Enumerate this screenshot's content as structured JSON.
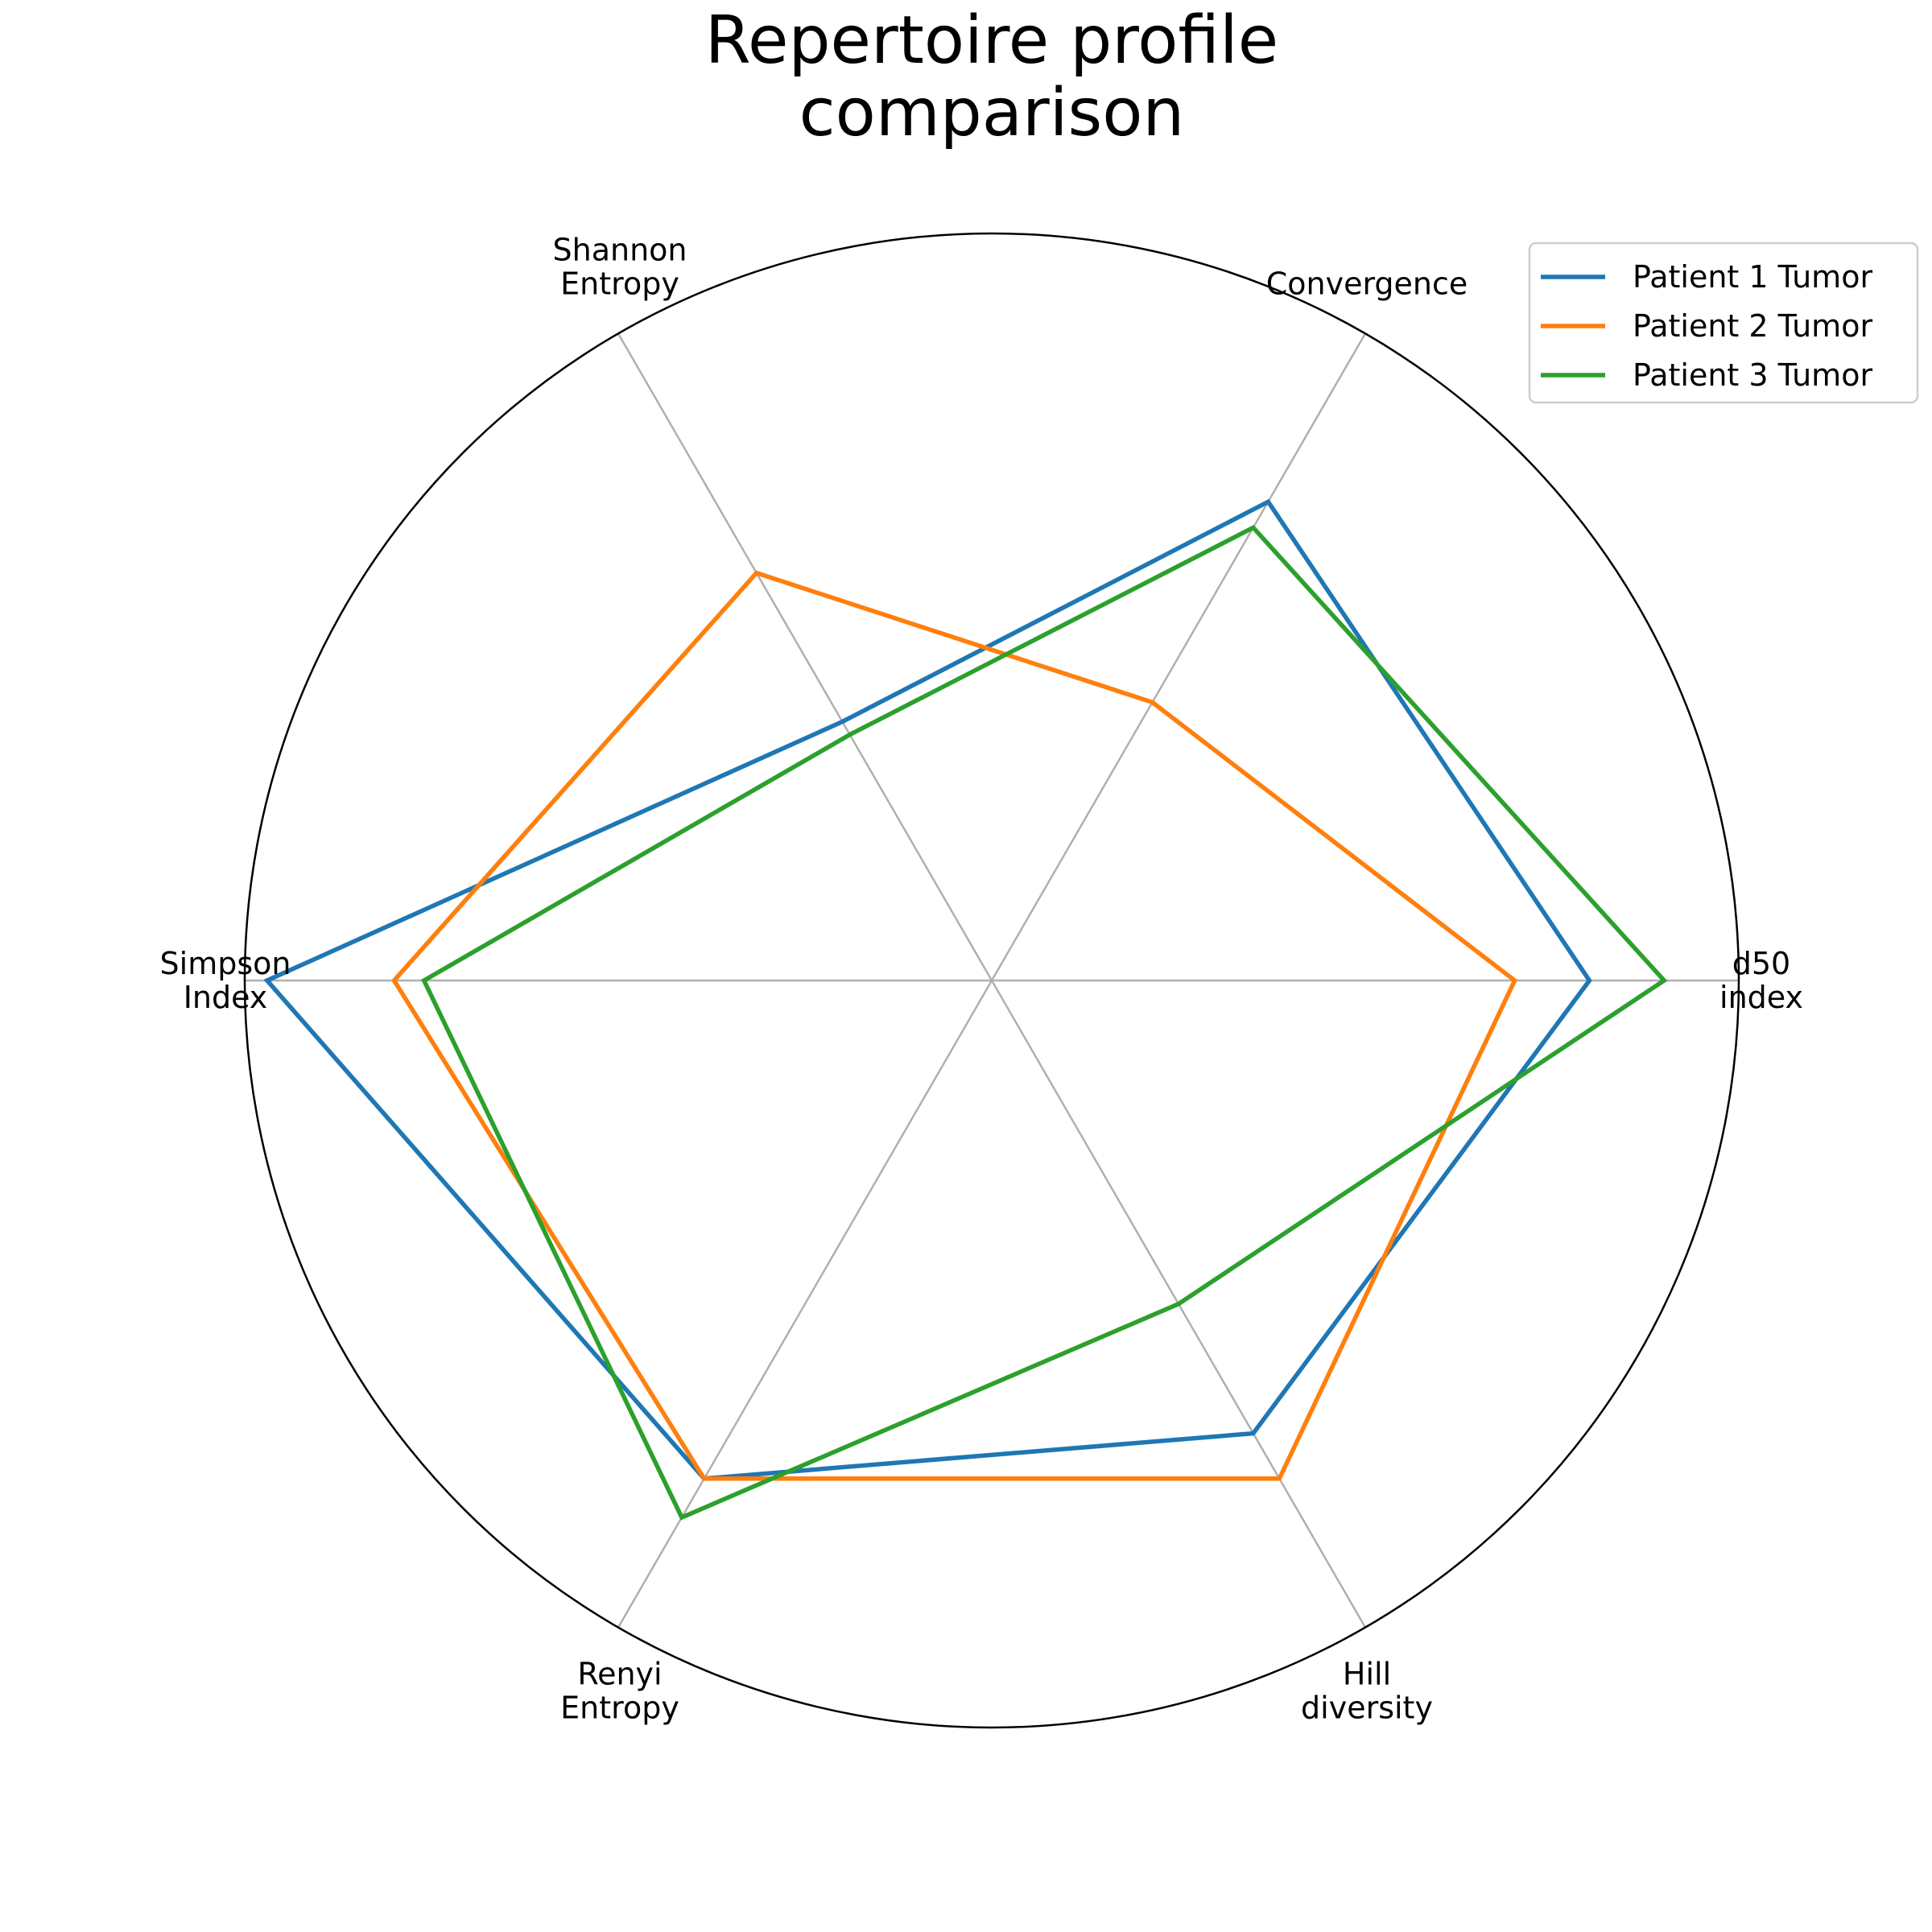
{
  "chart_data": {
    "type": "radar",
    "title": [
      "Repertoire profile",
      "comparison"
    ],
    "axes": [
      [
        "d50",
        "index"
      ],
      [
        "Convergence"
      ],
      [
        "Shannon",
        "Entropy"
      ],
      [
        "Simpson",
        "Index"
      ],
      [
        "Renyi",
        "Entropy"
      ],
      [
        "Hill",
        "diversity"
      ]
    ],
    "rlim": [
      0,
      1
    ],
    "grid": true,
    "legend_position": "top-right",
    "series": [
      {
        "name": "Patient 1 Tumor",
        "color": "#1f77b4",
        "values": [
          0.8,
          0.74,
          0.4,
          0.97,
          0.77,
          0.7
        ]
      },
      {
        "name": "Patient 2 Tumor",
        "color": "#ff7f0e",
        "values": [
          0.7,
          0.43,
          0.63,
          0.8,
          0.77,
          0.77
        ]
      },
      {
        "name": "Patient 3 Tumor",
        "color": "#2ca02c",
        "values": [
          0.9,
          0.7,
          0.38,
          0.76,
          0.83,
          0.5
        ]
      }
    ]
  }
}
